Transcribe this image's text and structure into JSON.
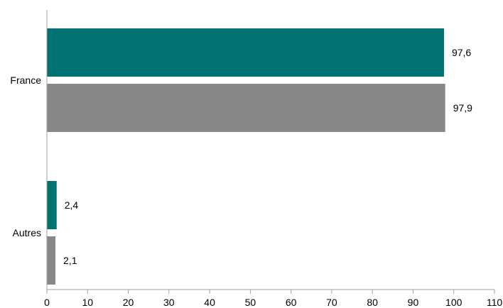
{
  "chart_data": {
    "type": "bar",
    "orientation": "horizontal",
    "categories": [
      "France",
      "Autres"
    ],
    "series": [
      {
        "values": [
          97.6,
          2.4
        ],
        "labels": [
          "97,6",
          "2,4"
        ],
        "color": "#007272"
      },
      {
        "values": [
          97.9,
          2.1
        ],
        "labels": [
          "97,9",
          "2,1"
        ],
        "color": "#878787"
      }
    ],
    "xlim": [
      0,
      110
    ],
    "xticks": [
      0,
      10,
      20,
      30,
      40,
      50,
      60,
      70,
      80,
      90,
      100,
      110
    ],
    "title": "",
    "xlabel": "",
    "ylabel": "",
    "grid": false,
    "legend": "none"
  }
}
